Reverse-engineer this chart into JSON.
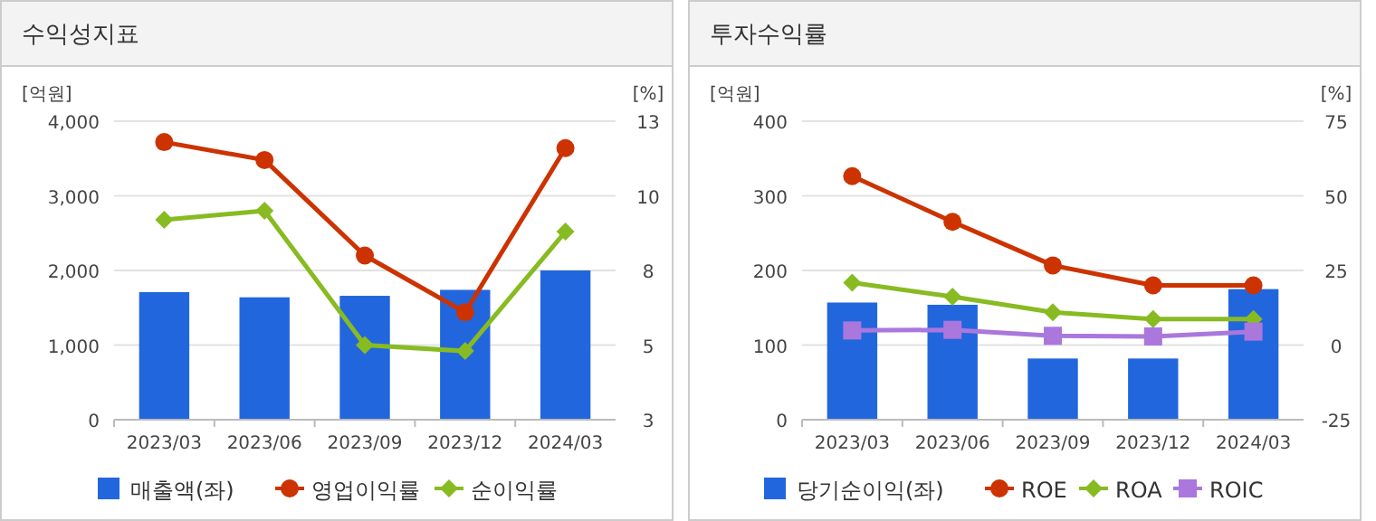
{
  "chart_data": [
    {
      "type": "bar",
      "title": "수익성지표",
      "ylabel": "[억원]",
      "y2label": "[%]",
      "categories": [
        "2023/03",
        "2023/06",
        "2023/09",
        "2023/12",
        "2024/03"
      ],
      "series": [
        {
          "name": "매출액(좌)",
          "color": "#2266dd",
          "values": [
            1710,
            1640,
            1660,
            1740,
            2000
          ]
        },
        {
          "name": "영업이익률",
          "type": "line",
          "axis": "y2",
          "marker": "circle",
          "color": "#cc3300",
          "values": [
            12.3,
            11.7,
            8.5,
            6.6,
            12.1
          ]
        },
        {
          "name": "순이익률",
          "type": "line",
          "axis": "y2",
          "marker": "diamond",
          "color": "#88bb22",
          "values": [
            9.7,
            10.0,
            5.5,
            5.3,
            9.3
          ]
        }
      ],
      "ylim": [
        0,
        4000
      ],
      "yticks": [
        0,
        {
          "value": 1000,
          "label": "1,000"
        },
        {
          "value": 2000,
          "label": "2,000"
        },
        {
          "value": 3000,
          "label": "3,000"
        },
        {
          "value": 4000,
          "label": "4,000"
        }
      ],
      "y2lim": [
        3,
        13
      ],
      "y2ticks": [
        3,
        {
          "value": 5.5,
          "label": "5"
        },
        8,
        {
          "value": 10.5,
          "label": "10"
        },
        13
      ],
      "grid": "y",
      "legend": "bottom"
    },
    {
      "type": "bar",
      "title": "투자수익률",
      "ylabel": "[억원]",
      "y2label": "[%]",
      "categories": [
        "2023/03",
        "2023/06",
        "2023/09",
        "2023/12",
        "2024/03"
      ],
      "series": [
        {
          "name": "당기순이익(좌)",
          "color": "#2266dd",
          "values": [
            157,
            154,
            82,
            82,
            175
          ]
        },
        {
          "name": "ROE",
          "type": "line",
          "axis": "y2",
          "marker": "circle",
          "color": "#cc3300",
          "values": [
            56.6,
            41.3,
            26.7,
            20.0,
            20.0
          ]
        },
        {
          "name": "ROA",
          "type": "line",
          "axis": "y2",
          "marker": "diamond",
          "color": "#88bb22",
          "values": [
            20.9,
            16.2,
            11.0,
            8.7,
            8.7
          ]
        },
        {
          "name": "ROIC",
          "type": "line",
          "axis": "y2",
          "marker": "square",
          "color": "#aa77dd",
          "values": [
            4.9,
            5.1,
            3.1,
            2.9,
            4.5
          ]
        }
      ],
      "ylim": [
        0,
        400
      ],
      "yticks": [
        0,
        100,
        200,
        300,
        400
      ],
      "y2lim": [
        -25,
        75
      ],
      "y2ticks": [
        -25,
        0,
        25,
        50,
        75
      ],
      "grid": "y",
      "legend": "bottom"
    }
  ]
}
